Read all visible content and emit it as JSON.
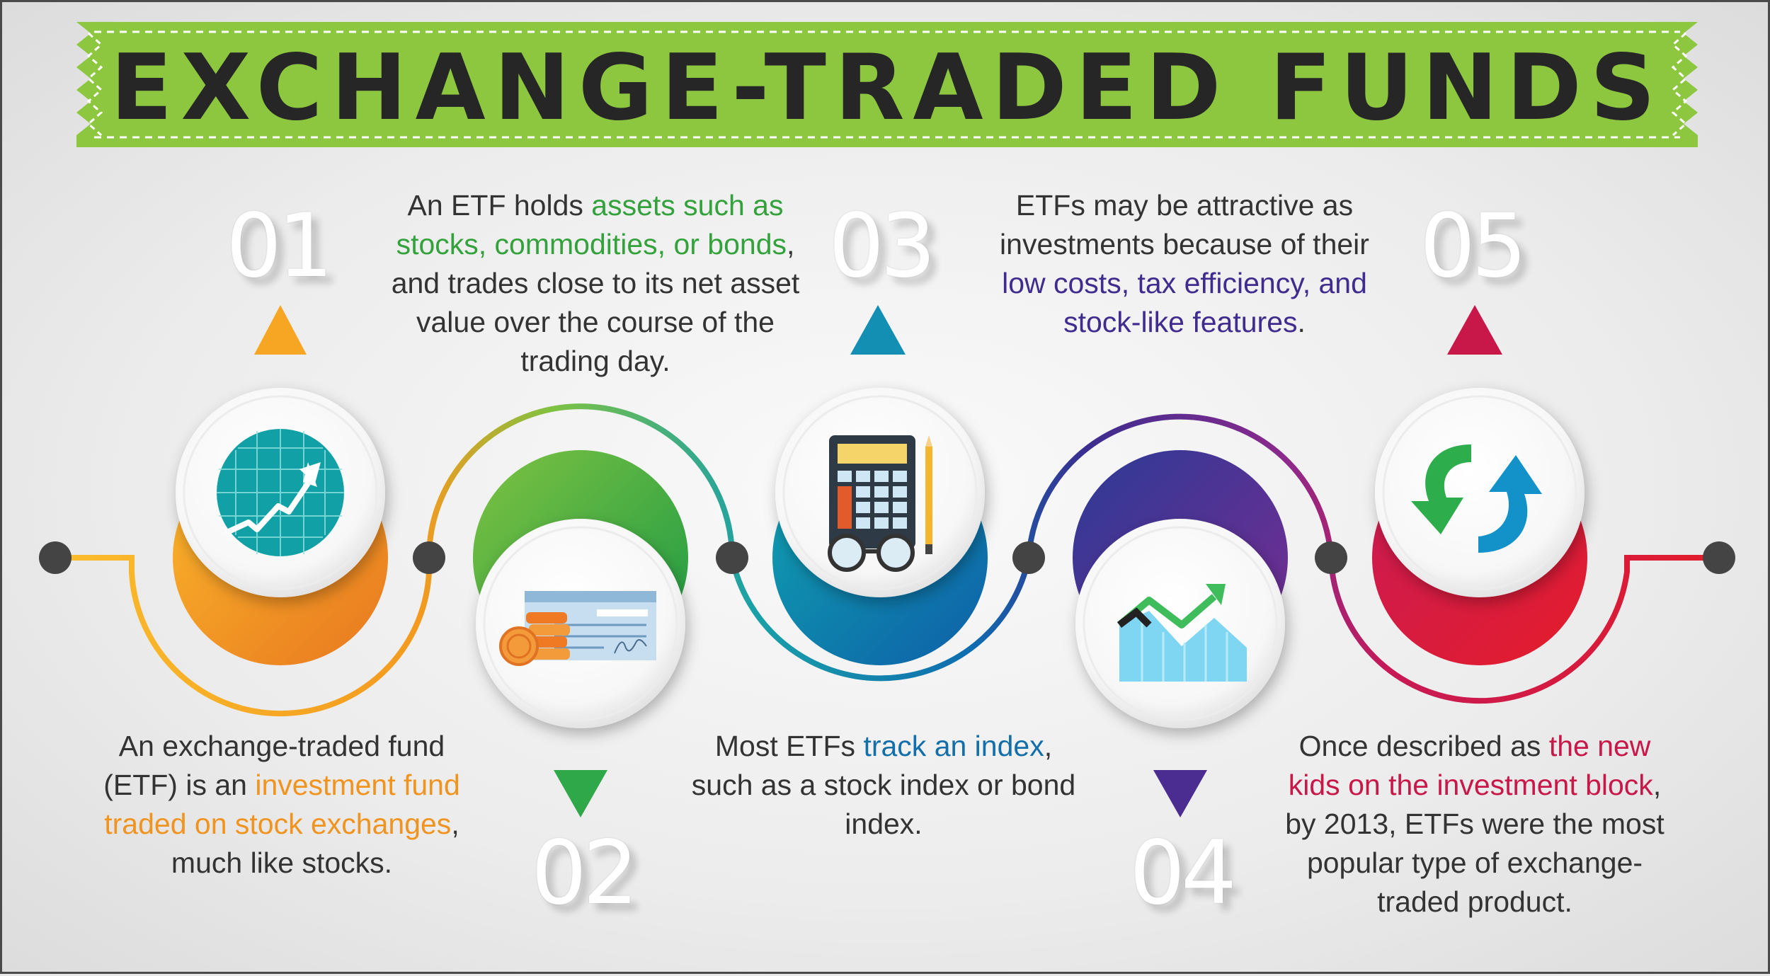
{
  "title": "EXCHANGE-TRADED FUNDS",
  "colors": {
    "banner": "#8dc63f",
    "step1": "#f5a623",
    "step2": "#5ab838",
    "step3": "#1188b4",
    "step4": "#4b2c91",
    "step5": "#c8184a",
    "text": "#333333"
  },
  "steps": [
    {
      "number": "01",
      "icon": "growth-chart-icon",
      "text_before": "An exchange-traded fund (ETF) is an ",
      "highlight": "investment fund traded on stock exchanges",
      "text_after": ", much like stocks."
    },
    {
      "number": "02",
      "icon": "check-and-coins-icon",
      "text_before": "An ETF holds ",
      "highlight": "assets such as stocks, commodities, or bonds",
      "text_after": ", and trades close to its net asset value over the course of the trading day."
    },
    {
      "number": "03",
      "icon": "calculator-glasses-pencil-icon",
      "text_before": "Most ETFs ",
      "highlight": "track an index",
      "text_after": ", such as a stock index or bond index."
    },
    {
      "number": "04",
      "icon": "area-chart-icon",
      "text_before": "ETFs may be attractive as investments because of their ",
      "highlight": "low costs, tax efficiency, and stock-like features",
      "text_after": "."
    },
    {
      "number": "05",
      "icon": "refresh-arrows-icon",
      "text_before": "Once described as ",
      "highlight": "the new kids on the investment block",
      "text_after": ", by 2013, ETFs were the most popular type of exchange-traded product."
    }
  ]
}
